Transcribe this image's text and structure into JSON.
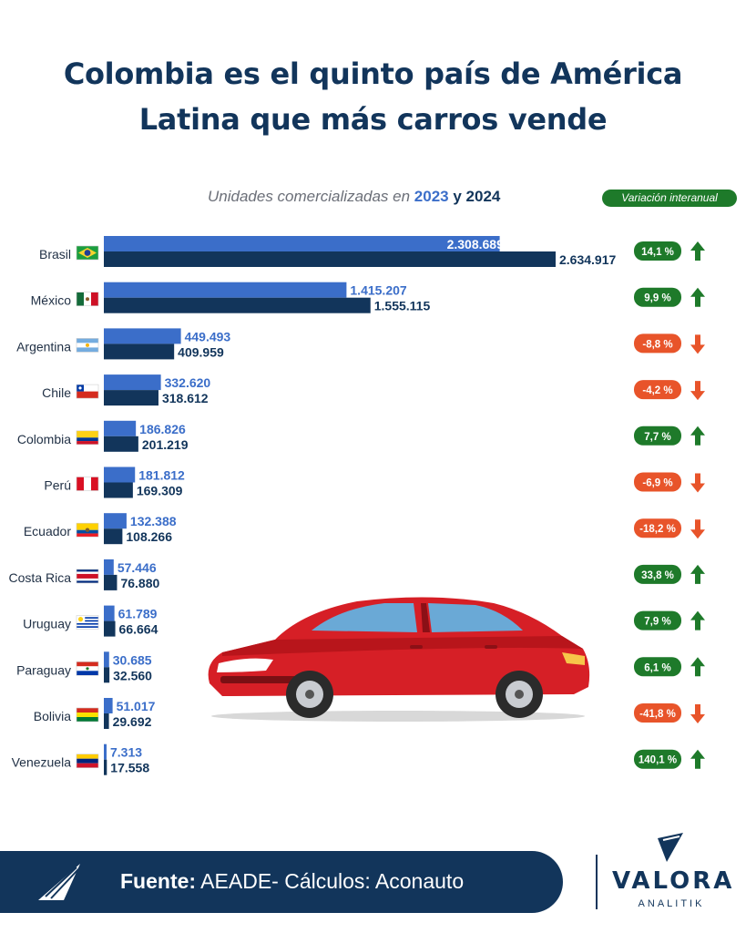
{
  "title_line1": "Colombia es el quinto país de América",
  "title_line2": "Latina que más carros vende",
  "subtitle": {
    "prefix": "Unidades comercializadas en ",
    "year1": "2023",
    "mid": " y ",
    "year2": "2024"
  },
  "variation_label": "Variación interanual",
  "colors": {
    "bar_2023": "#3b6ec9",
    "bar_2024": "#12355b",
    "positive": "#1e7a2a",
    "negative": "#e8542a",
    "title": "#12355b"
  },
  "chart_data": {
    "type": "bar",
    "orientation": "horizontal",
    "categories": [
      "Brasil",
      "México",
      "Argentina",
      "Chile",
      "Colombia",
      "Perú",
      "Ecuador",
      "Costa Rica",
      "Uruguay",
      "Paraguay",
      "Bolivia",
      "Venezuela"
    ],
    "series": [
      {
        "name": "2023",
        "values": [
          2308689,
          1415207,
          449493,
          332620,
          186826,
          181812,
          132388,
          57446,
          61789,
          30685,
          51017,
          7313
        ],
        "labels": [
          "2.308.689",
          "1.415.207",
          "449.493",
          "332.620",
          "186.826",
          "181.812",
          "132.388",
          "57.446",
          "61.789",
          "30.685",
          "51.017",
          "7.313"
        ]
      },
      {
        "name": "2024",
        "values": [
          2634917,
          1555115,
          409959,
          318612,
          201219,
          169309,
          108266,
          76880,
          66664,
          32560,
          29692,
          17558
        ],
        "labels": [
          "2.634.917",
          "1.555.115",
          "409.959",
          "318.612",
          "201.219",
          "169.309",
          "108.266",
          "76.880",
          "66.664",
          "32.560",
          "29.692",
          "17.558"
        ]
      }
    ],
    "variation": {
      "values": [
        14.1,
        9.9,
        -8.8,
        -4.2,
        7.7,
        -6.9,
        -18.2,
        33.8,
        7.9,
        6.1,
        -41.8,
        140.1
      ],
      "labels": [
        "14,1 %",
        "9,9 %",
        "-8,8 %",
        "-4,2 %",
        "7,7 %",
        "-6,9 %",
        "-18,2 %",
        "33,8 %",
        "7,9 %",
        "6,1 %",
        "-41,8 %",
        "140,1 %"
      ]
    },
    "flag_icons": [
      "brazil-flag-icon",
      "mexico-flag-icon",
      "argentina-flag-icon",
      "chile-flag-icon",
      "colombia-flag-icon",
      "peru-flag-icon",
      "ecuador-flag-icon",
      "costa-rica-flag-icon",
      "uruguay-flag-icon",
      "paraguay-flag-icon",
      "bolivia-flag-icon",
      "venezuela-flag-icon"
    ],
    "xlim": [
      0,
      2634917
    ]
  },
  "footer": {
    "label": "Fuente:",
    "text": " AEADE- Cálculos: Aconauto"
  },
  "brand": {
    "name": "VALORA",
    "sub": "ANALITIK"
  }
}
